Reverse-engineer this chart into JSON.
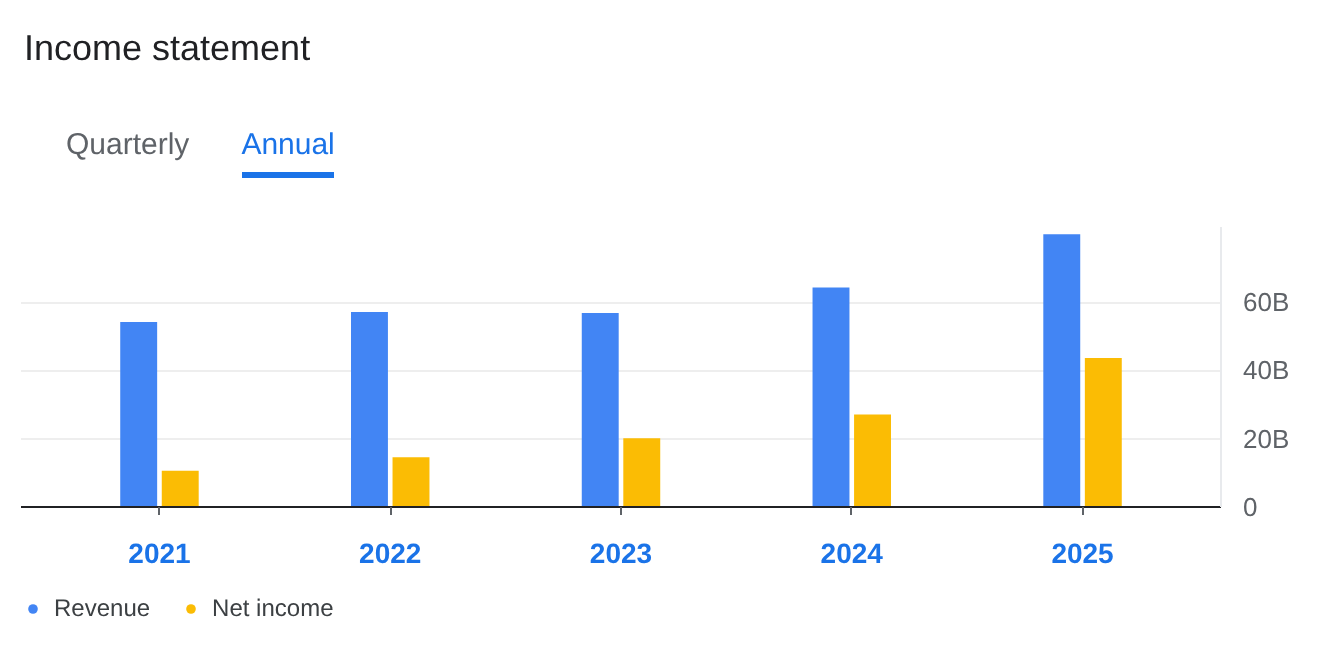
{
  "chart_data": {
    "type": "bar",
    "title": "Income statement",
    "annotations": [
      "Quarterly",
      "Annual"
    ],
    "categories": [
      "2021",
      "2022",
      "2023",
      "2024",
      "2025"
    ],
    "series": [
      {
        "name": "Revenue",
        "color": "#4285f4",
        "values": [
          54.2,
          57.1,
          56.8,
          64.3,
          79.9
        ]
      },
      {
        "name": "Net income",
        "color": "#fbbc04",
        "values": [
          10.6,
          14.6,
          20.1,
          27.1,
          43.6
        ]
      }
    ],
    "ylim": [
      0,
      82
    ],
    "yticks": [
      0,
      {
        "value": 20,
        "label": "20B"
      },
      {
        "value": 40,
        "label": "40B"
      },
      {
        "value": 60,
        "label": "60B"
      }
    ],
    "grid": "y",
    "legend": "bottom left"
  }
}
